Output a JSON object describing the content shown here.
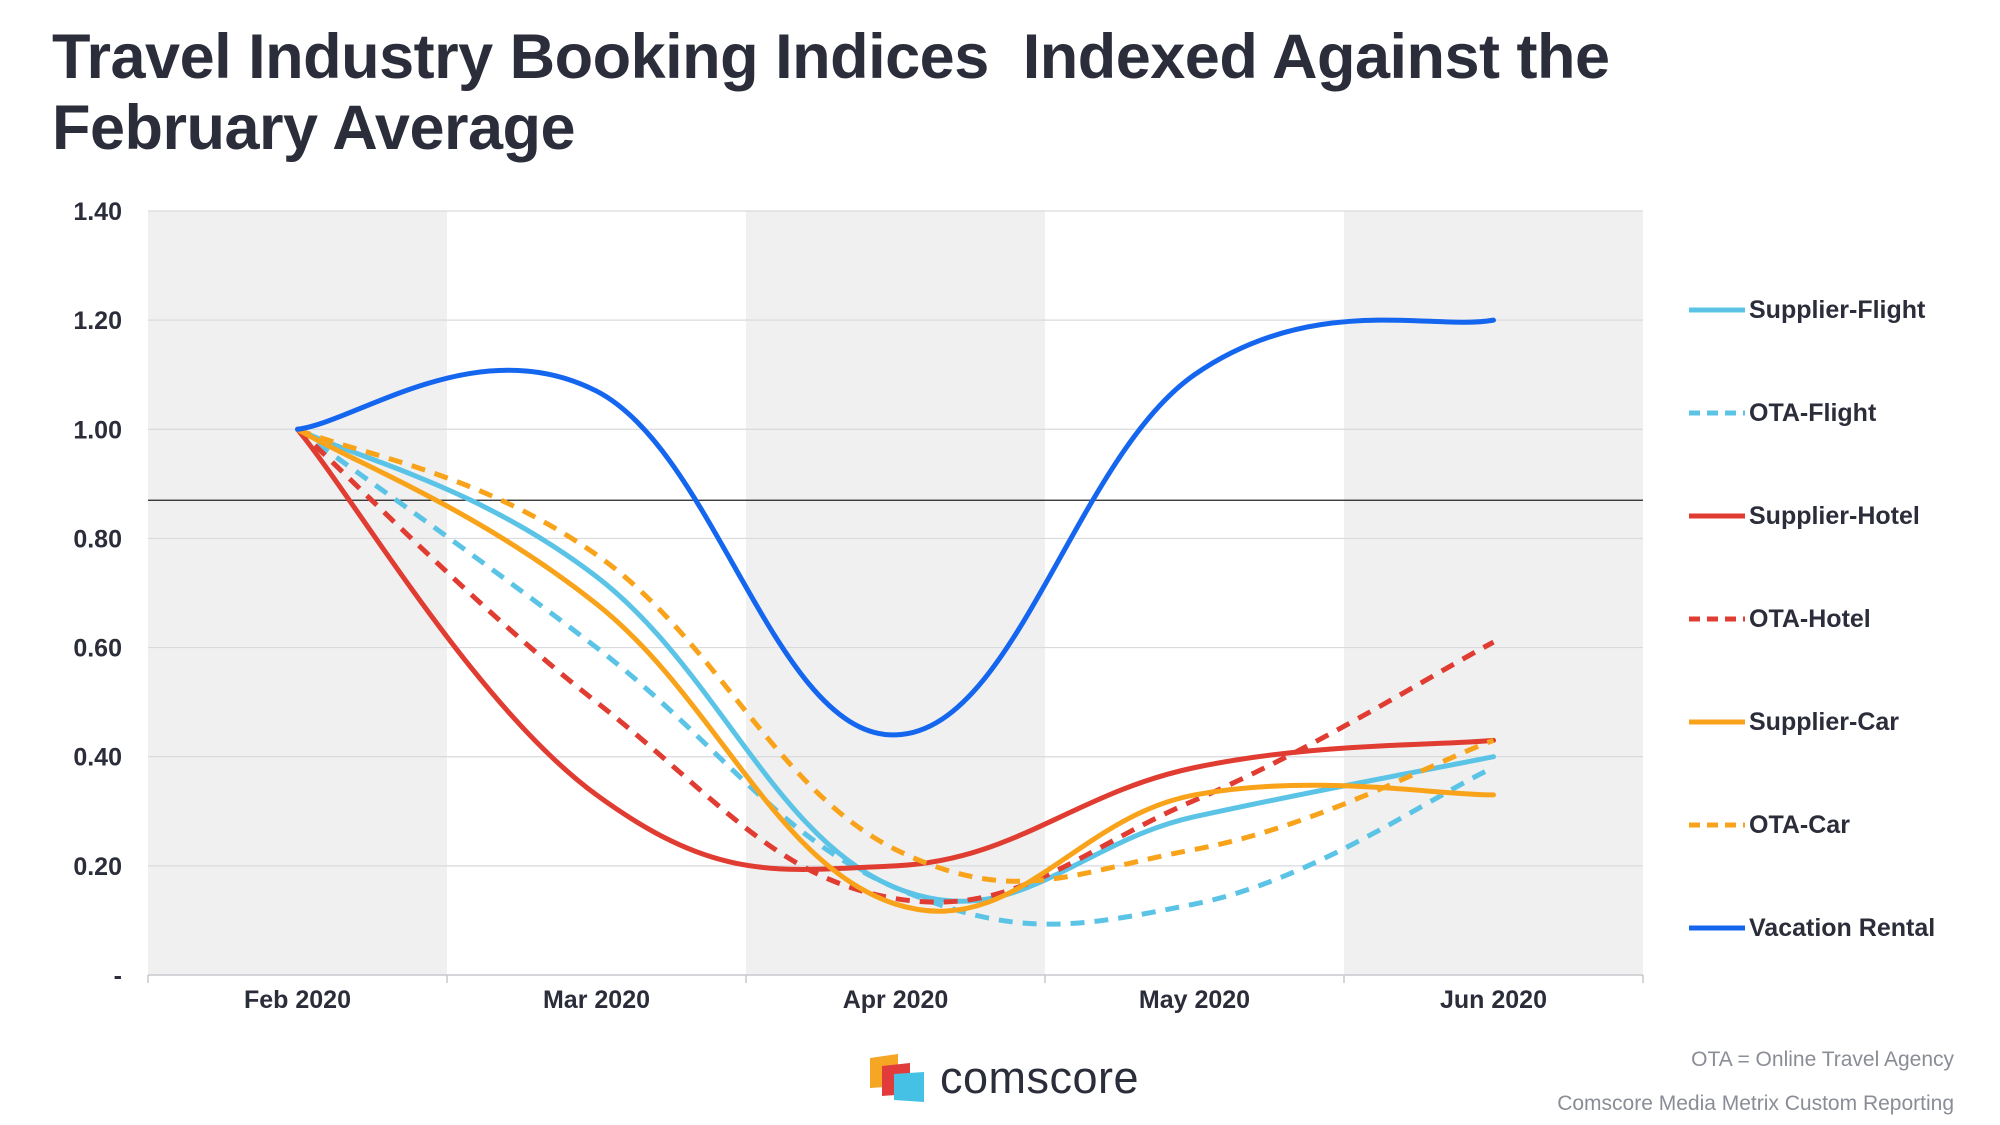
{
  "title": "Travel Industry Booking Indices  Indexed Against the February Average",
  "footnotes": {
    "ota_definition": "OTA = Online Travel Agency",
    "source": "Comscore Media Metrix Custom Reporting"
  },
  "brand": {
    "name": "comscore",
    "logo_colors": [
      "#f5a623",
      "#e23b3b",
      "#45c1e6"
    ]
  },
  "chart_data": {
    "type": "line",
    "title": "Travel Industry Booking Indices  Indexed Against the February Average",
    "xlabel": "",
    "ylabel": "",
    "categories": [
      "Feb 2020",
      "Mar 2020",
      "Apr 2020",
      "May 2020",
      "Jun 2020"
    ],
    "y_ticks": [
      "-",
      "0.20",
      "0.40",
      "0.60",
      "0.80",
      "1.00",
      "1.20",
      "1.40"
    ],
    "ylim": [
      0,
      1.4
    ],
    "reference_line": 0.87,
    "grid": true,
    "legend_position": "right",
    "series": [
      {
        "name": "Supplier-Flight",
        "color": "#5bc4e6",
        "dash": false,
        "values": [
          1.0,
          0.73,
          0.16,
          0.29,
          0.4
        ]
      },
      {
        "name": "OTA-Flight",
        "color": "#5bc4e6",
        "dash": true,
        "values": [
          1.0,
          0.6,
          0.16,
          0.13,
          0.38
        ]
      },
      {
        "name": "Supplier-Hotel",
        "color": "#e03c31",
        "dash": false,
        "values": [
          1.0,
          0.33,
          0.2,
          0.38,
          0.43
        ]
      },
      {
        "name": "OTA-Hotel",
        "color": "#e03c31",
        "dash": true,
        "values": [
          1.0,
          0.5,
          0.14,
          0.32,
          0.61
        ]
      },
      {
        "name": "Supplier-Car",
        "color": "#f9a31b",
        "dash": false,
        "values": [
          1.0,
          0.68,
          0.13,
          0.33,
          0.33
        ]
      },
      {
        "name": "OTA-Car",
        "color": "#f9a31b",
        "dash": true,
        "values": [
          1.0,
          0.77,
          0.23,
          0.23,
          0.43
        ]
      },
      {
        "name": "Vacation Rental",
        "color": "#1566ef",
        "dash": false,
        "values": [
          1.0,
          1.07,
          0.44,
          1.1,
          1.2
        ]
      }
    ]
  }
}
